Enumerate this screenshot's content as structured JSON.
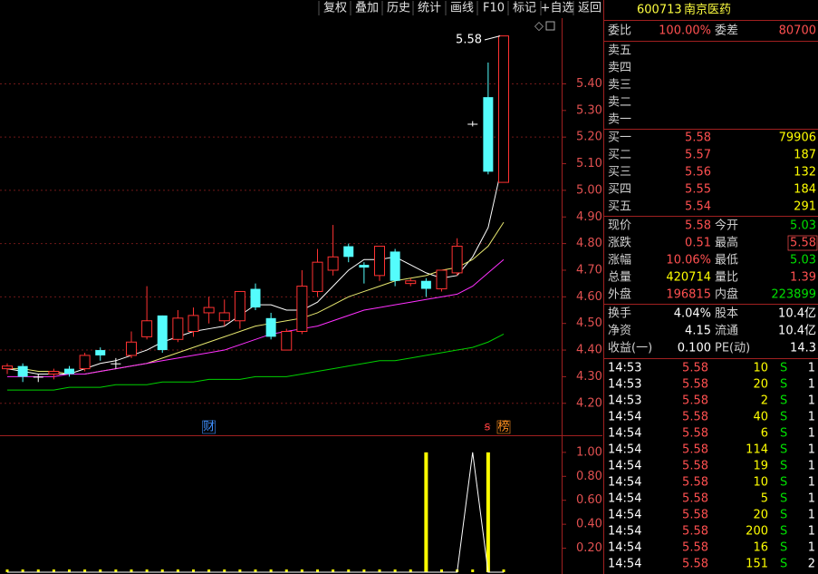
{
  "toolbar": [
    "复权",
    "叠加",
    "历史",
    "统计",
    "画线",
    "F10",
    "标记",
    "+自选",
    "返回"
  ],
  "kline": {
    "type": "candlestick",
    "open": [
      4.33,
      4.34,
      4.3,
      4.31,
      4.33,
      4.33,
      4.4,
      4.35,
      4.38,
      4.45,
      4.53,
      4.44,
      4.47,
      4.54,
      4.51,
      4.51,
      4.63,
      4.52,
      4.4,
      4.47,
      4.62,
      4.7,
      4.79,
      4.72,
      4.68,
      4.77,
      4.65,
      4.66,
      4.63,
      4.69,
      5.25,
      5.35,
      5.03
    ],
    "high": [
      4.35,
      4.35,
      4.31,
      4.33,
      4.34,
      4.39,
      4.41,
      4.37,
      4.47,
      4.64,
      4.53,
      4.55,
      4.56,
      4.6,
      4.59,
      4.62,
      4.65,
      4.54,
      4.48,
      4.7,
      4.78,
      4.87,
      4.8,
      4.73,
      4.79,
      4.78,
      4.67,
      4.67,
      4.7,
      4.82,
      5.26,
      5.48,
      5.58
    ],
    "low": [
      4.31,
      4.28,
      4.28,
      4.29,
      4.3,
      4.32,
      4.36,
      4.33,
      4.37,
      4.44,
      4.39,
      4.43,
      4.45,
      4.5,
      4.49,
      4.48,
      4.55,
      4.44,
      4.4,
      4.46,
      4.6,
      4.68,
      4.73,
      4.65,
      4.66,
      4.64,
      4.64,
      4.6,
      4.62,
      4.68,
      5.24,
      5.06,
      5.03
    ],
    "close": [
      4.34,
      4.3,
      4.3,
      4.32,
      4.31,
      4.38,
      4.38,
      4.35,
      4.43,
      4.51,
      4.4,
      4.52,
      4.53,
      4.56,
      4.54,
      4.62,
      4.56,
      4.45,
      4.47,
      4.64,
      4.73,
      4.75,
      4.75,
      4.71,
      4.79,
      4.66,
      4.66,
      4.63,
      4.7,
      4.79,
      5.25,
      5.07,
      5.58
    ],
    "ma": [
      {
        "color": "#ffffff",
        "values": [
          4.33,
          4.32,
          4.31,
          4.31,
          4.31,
          4.33,
          4.35,
          4.36,
          4.38,
          4.4,
          4.43,
          4.45,
          4.47,
          4.48,
          4.49,
          4.53,
          4.57,
          4.57,
          4.55,
          4.55,
          4.58,
          4.64,
          4.7,
          4.74,
          4.74,
          4.75,
          4.72,
          4.69,
          4.67,
          4.68,
          4.75,
          4.86,
          5.12
        ]
      },
      {
        "color": "#e8e870",
        "values": [
          4.33,
          4.33,
          4.32,
          4.32,
          4.31,
          4.31,
          4.32,
          4.33,
          4.34,
          4.35,
          4.37,
          4.39,
          4.41,
          4.43,
          4.45,
          4.47,
          4.49,
          4.5,
          4.51,
          4.52,
          4.54,
          4.57,
          4.6,
          4.62,
          4.64,
          4.66,
          4.67,
          4.68,
          4.7,
          4.71,
          4.74,
          4.79,
          4.88
        ]
      },
      {
        "color": "#ff30ff",
        "values": [
          4.3,
          4.3,
          4.3,
          4.3,
          4.31,
          4.31,
          4.32,
          4.33,
          4.34,
          4.35,
          4.36,
          4.37,
          4.38,
          4.39,
          4.4,
          4.42,
          4.44,
          4.46,
          4.47,
          4.48,
          4.49,
          4.51,
          4.53,
          4.55,
          4.56,
          4.57,
          4.58,
          4.59,
          4.6,
          4.61,
          4.64,
          4.69,
          4.74
        ]
      },
      {
        "color": "#00d000",
        "values": [
          4.25,
          4.25,
          4.25,
          4.25,
          4.26,
          4.26,
          4.26,
          4.27,
          4.27,
          4.27,
          4.28,
          4.28,
          4.28,
          4.29,
          4.29,
          4.29,
          4.3,
          4.3,
          4.3,
          4.31,
          4.32,
          4.33,
          4.34,
          4.35,
          4.36,
          4.36,
          4.37,
          4.38,
          4.39,
          4.4,
          4.41,
          4.43,
          4.46
        ]
      }
    ],
    "ylim": [
      4.08,
      5.64
    ],
    "yticks": [
      {
        "value": 5.4,
        "label": "5.40"
      },
      {
        "value": 5.3,
        "label": "5.30"
      },
      {
        "value": 5.2,
        "label": "5.20"
      },
      {
        "value": 5.1,
        "label": "5.10"
      },
      {
        "value": 5.0,
        "label": "5.00"
      },
      {
        "value": 4.9,
        "label": "4.90"
      },
      {
        "value": 4.8,
        "label": "4.80"
      },
      {
        "value": 4.7,
        "label": "4.70"
      },
      {
        "value": 4.6,
        "label": "4.60"
      },
      {
        "value": 4.5,
        "label": "4.50"
      },
      {
        "value": 4.4,
        "label": "4.40"
      },
      {
        "value": 4.3,
        "label": "4.30"
      },
      {
        "value": 4.2,
        "label": "4.20"
      }
    ],
    "gridlines": [
      5.4,
      5.2,
      5.0,
      4.8,
      4.6,
      4.4,
      4.2
    ],
    "high_label": "5.58",
    "markers": [
      {
        "index": 13,
        "label": "财",
        "color": "#4090ff"
      },
      {
        "index": 32,
        "label": "榜",
        "color": "#ff9020"
      }
    ]
  },
  "indicator": {
    "line": {
      "color": "#ffffff",
      "values": [
        0,
        0,
        0,
        0,
        0,
        0,
        0,
        0,
        0,
        0,
        0,
        0,
        0,
        0,
        0,
        0,
        0,
        0,
        0,
        0,
        0,
        0,
        0,
        0,
        0,
        0,
        0,
        0,
        0,
        0,
        1,
        0,
        0
      ]
    },
    "bars": {
      "color": "#ffff00",
      "values": [
        0,
        0,
        0,
        0,
        0,
        0,
        0,
        0,
        0,
        0,
        0,
        0,
        0,
        0,
        0,
        0,
        0,
        0,
        0,
        0,
        0,
        0,
        0,
        0,
        0,
        0,
        0,
        1,
        0,
        0,
        0,
        1,
        0
      ]
    },
    "ylim": [
      0,
      1.12
    ],
    "yticks": [
      {
        "value": 1.0,
        "label": "1.00"
      },
      {
        "value": 0.8,
        "label": "0.80"
      },
      {
        "value": 0.6,
        "label": "0.60"
      },
      {
        "value": 0.4,
        "label": "0.40"
      },
      {
        "value": 0.2,
        "label": "0.20"
      }
    ]
  },
  "quote": {
    "code": "600713",
    "name": "南京医药",
    "ratio": [
      {
        "label": "委比",
        "value": "100.00%",
        "color": "#ff5050"
      },
      {
        "label": "委差",
        "value": "80700",
        "color": "#ff5050"
      }
    ],
    "sells": [
      "卖五",
      "卖四",
      "卖三",
      "卖二",
      "卖一"
    ],
    "buys": [
      {
        "label": "买一",
        "price": "5.58",
        "volume": "79906"
      },
      {
        "label": "买二",
        "price": "5.57",
        "volume": "187"
      },
      {
        "label": "买三",
        "price": "5.56",
        "volume": "132"
      },
      {
        "label": "买四",
        "price": "5.55",
        "volume": "184"
      },
      {
        "label": "买五",
        "price": "5.54",
        "volume": "291"
      }
    ],
    "stats": [
      [
        {
          "label": "现价",
          "value": "5.58",
          "color": "#ff5050"
        },
        {
          "label": "今开",
          "value": "5.03",
          "color": "#00e000"
        }
      ],
      [
        {
          "label": "涨跌",
          "value": "0.51",
          "color": "#ff5050"
        },
        {
          "label": "最高",
          "value": "5.58",
          "color": "#ff5050"
        }
      ],
      [
        {
          "label": "涨幅",
          "value": "10.06%",
          "color": "#ff5050"
        },
        {
          "label": "最低",
          "value": "5.03",
          "color": "#00e000"
        }
      ],
      [
        {
          "label": "总量",
          "value": "420714",
          "color": "#ffff00"
        },
        {
          "label": "量比",
          "value": "1.39",
          "color": "#ff5050"
        }
      ],
      [
        {
          "label": "外盘",
          "value": "196815",
          "color": "#ff5050"
        },
        {
          "label": "内盘",
          "value": "223899",
          "color": "#00e000"
        }
      ]
    ],
    "fundamentals": [
      [
        {
          "label": "换手",
          "value": "4.04%"
        },
        {
          "label": "股本",
          "value": "10.4亿"
        }
      ],
      [
        {
          "label": "净资",
          "value": "4.15"
        },
        {
          "label": "流通",
          "value": "10.4亿"
        }
      ],
      [
        {
          "label": "收益(一)",
          "value": "0.100"
        },
        {
          "label": "PE(动)",
          "value": "14.3"
        }
      ]
    ],
    "ticks": [
      {
        "time": "14:53",
        "price": "5.58",
        "volume": "10",
        "side": "S",
        "count": "1"
      },
      {
        "time": "14:53",
        "price": "5.58",
        "volume": "20",
        "side": "S",
        "count": "1"
      },
      {
        "time": "14:53",
        "price": "5.58",
        "volume": "2",
        "side": "S",
        "count": "1"
      },
      {
        "time": "14:54",
        "price": "5.58",
        "volume": "40",
        "side": "S",
        "count": "1"
      },
      {
        "time": "14:54",
        "price": "5.58",
        "volume": "6",
        "side": "S",
        "count": "1"
      },
      {
        "time": "14:54",
        "price": "5.58",
        "volume": "114",
        "side": "S",
        "count": "1"
      },
      {
        "time": "14:54",
        "price": "5.58",
        "volume": "19",
        "side": "S",
        "count": "1"
      },
      {
        "time": "14:54",
        "price": "5.58",
        "volume": "10",
        "side": "S",
        "count": "1"
      },
      {
        "time": "14:54",
        "price": "5.58",
        "volume": "5",
        "side": "S",
        "count": "1"
      },
      {
        "time": "14:54",
        "price": "5.58",
        "volume": "20",
        "side": "S",
        "count": "1"
      },
      {
        "time": "14:54",
        "price": "5.58",
        "volume": "200",
        "side": "S",
        "count": "1"
      },
      {
        "time": "14:54",
        "price": "5.58",
        "volume": "16",
        "side": "S",
        "count": "1"
      },
      {
        "time": "14:54",
        "price": "5.58",
        "volume": "151",
        "side": "S",
        "count": "2"
      }
    ]
  }
}
